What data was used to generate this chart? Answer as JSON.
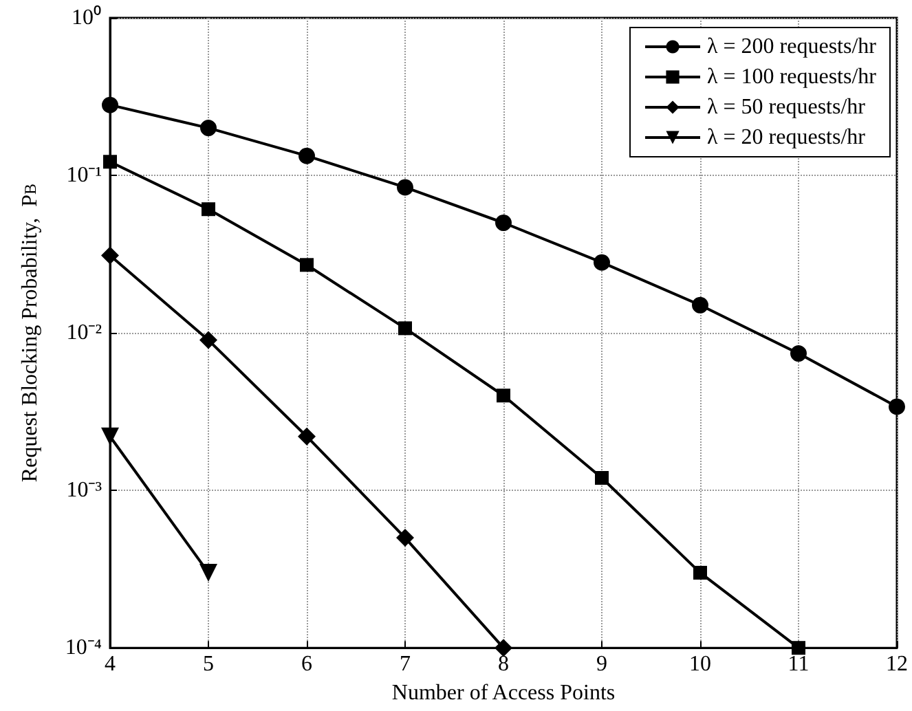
{
  "chart_data": {
    "type": "line",
    "xlabel": "Number of Access Points",
    "ylabel": "Request Blocking Probability,  P$_{B}$",
    "x": [
      4,
      5,
      6,
      7,
      8,
      9,
      10,
      11,
      12
    ],
    "series": [
      {
        "name": "λ = 200 requests/hr",
        "color": "#000000",
        "marker": "circle",
        "values": [
          0.28,
          0.2,
          0.133,
          0.084,
          0.05,
          0.028,
          0.015,
          0.0074,
          0.0034
        ]
      },
      {
        "name": "λ = 100 requests/hr",
        "color": "#000000",
        "marker": "square",
        "values": [
          0.122,
          0.061,
          0.027,
          0.0107,
          0.004,
          0.0012,
          0.0003,
          0.0001,
          null
        ]
      },
      {
        "name": "λ = 50 requests/hr",
        "color": "#000000",
        "marker": "diamond",
        "values": [
          0.031,
          0.009,
          0.0022,
          0.0005,
          0.0001,
          null,
          null,
          null,
          null
        ]
      },
      {
        "name": "λ = 20 requests/hr",
        "color": "#000000",
        "marker": "triangle",
        "values": [
          0.0022,
          0.0003,
          null,
          null,
          null,
          null,
          null,
          null,
          null
        ]
      }
    ],
    "xlim": [
      4,
      12
    ],
    "xticks": [
      4,
      5,
      6,
      7,
      8,
      9,
      10,
      11,
      12
    ],
    "ylim": [
      0.0001,
      1
    ],
    "yticks": [
      {
        "value": 0.0001,
        "label": "10⁻⁴"
      },
      {
        "value": 0.001,
        "label": "10⁻³"
      },
      {
        "value": 0.01,
        "label": "10⁻²"
      },
      {
        "value": 0.1,
        "label": "10⁻¹"
      },
      {
        "value": 1,
        "label": "10⁰"
      }
    ],
    "log": "y",
    "grid": true,
    "legend": "top right",
    "line_style": "solid"
  }
}
